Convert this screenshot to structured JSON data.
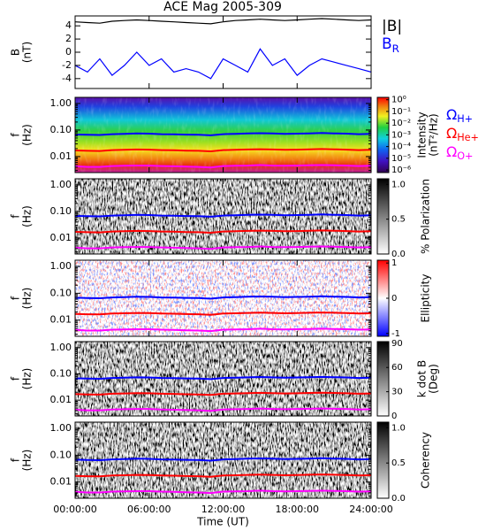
{
  "title": "ACE Mag 2005-309",
  "chart_data": [
    {
      "type": "line",
      "ylabel": [
        "B",
        "(nT)"
      ],
      "x": [
        0,
        1,
        2,
        3,
        4,
        5,
        6,
        7,
        8,
        9,
        10,
        11,
        12,
        13,
        14,
        15,
        16,
        17,
        18,
        19,
        20,
        21,
        22,
        23,
        24
      ],
      "xlim": [
        0,
        24
      ],
      "xticks": [
        0,
        6,
        12,
        18,
        24
      ],
      "ylim": [
        -5.5,
        5.5
      ],
      "yticks": [
        -4,
        -2,
        0,
        2,
        4
      ],
      "series": [
        {
          "name": "|B|",
          "color": "#000000",
          "values": [
            4.6,
            4.5,
            4.4,
            4.7,
            4.8,
            4.9,
            4.8,
            4.7,
            4.6,
            4.5,
            4.4,
            4.3,
            4.6,
            4.8,
            4.9,
            5.0,
            4.9,
            4.8,
            4.9,
            5.0,
            5.1,
            5.0,
            4.9,
            4.8,
            4.9
          ]
        },
        {
          "name": "B",
          "name_sub": "R",
          "color": "#0000ff",
          "values": [
            -2,
            -3,
            -1,
            -3.5,
            -2,
            0,
            -2,
            -1,
            -3,
            -2.5,
            -3,
            -4,
            -1,
            -2,
            -3,
            0.5,
            -2,
            -1,
            -3.5,
            -2,
            -1,
            -1.5,
            -2,
            -2.5,
            -3
          ]
        }
      ]
    },
    {
      "type": "spectrogram",
      "colormap": "rainbow",
      "ylabel": [
        "f",
        "(Hz)"
      ],
      "x": [
        0,
        1,
        2,
        3,
        4,
        5,
        6,
        7,
        8,
        9,
        10,
        11,
        12,
        13,
        14,
        15,
        16,
        17,
        18,
        19,
        20,
        21,
        22,
        23,
        24
      ],
      "xlim": [
        0,
        24
      ],
      "xticks": [
        0,
        6,
        12,
        18,
        24
      ],
      "log_y": true,
      "ylim": [
        0.0025,
        1.7
      ],
      "yticks": [
        {
          "value": 1,
          "label": "1.00"
        },
        {
          "value": 0.1,
          "label": "0.10"
        },
        {
          "value": 0.01,
          "label": "0.01"
        }
      ],
      "colorbar": {
        "label": [
          "Intensity",
          "(nT²/Hz)"
        ],
        "log": true,
        "lim": [
          6e-07,
          1.6
        ],
        "ticks": [
          {
            "value": 1,
            "label": "10⁰"
          },
          {
            "value": 0.1,
            "label": "10⁻¹"
          },
          {
            "value": 0.01,
            "label": "10⁻²"
          },
          {
            "value": 0.001,
            "label": "10⁻³"
          },
          {
            "value": 0.0001,
            "label": "10⁻⁴"
          },
          {
            "value": 1e-05,
            "label": "10⁻⁵"
          },
          {
            "value": 1e-06,
            "label": "10⁻⁶"
          }
        ]
      },
      "series": [
        {
          "name": "Ω",
          "name_sub": "H+",
          "color": "#0000ff",
          "values": [
            0.068,
            0.066,
            0.065,
            0.07,
            0.072,
            0.074,
            0.073,
            0.07,
            0.069,
            0.067,
            0.066,
            0.063,
            0.07,
            0.072,
            0.074,
            0.076,
            0.074,
            0.072,
            0.073,
            0.075,
            0.077,
            0.075,
            0.073,
            0.07,
            0.072
          ]
        },
        {
          "name": "Ω",
          "name_sub": "He+",
          "color": "#ff0000",
          "values": [
            0.017,
            0.0165,
            0.0163,
            0.0175,
            0.018,
            0.0185,
            0.0183,
            0.0175,
            0.0173,
            0.0168,
            0.0165,
            0.0158,
            0.0175,
            0.018,
            0.0185,
            0.019,
            0.0185,
            0.018,
            0.0183,
            0.0188,
            0.0193,
            0.0188,
            0.0183,
            0.0175,
            0.018
          ]
        },
        {
          "name": "Ω",
          "name_sub": "O+",
          "color": "#ff00ff",
          "values": [
            0.0043,
            0.0041,
            0.0041,
            0.0044,
            0.0045,
            0.0046,
            0.0046,
            0.0044,
            0.0043,
            0.0042,
            0.0041,
            0.0039,
            0.0044,
            0.0045,
            0.0046,
            0.0048,
            0.0046,
            0.0045,
            0.0046,
            0.0047,
            0.0048,
            0.0047,
            0.0046,
            0.0044,
            0.0045
          ]
        }
      ]
    },
    {
      "type": "spectrogram",
      "colormap": "gray",
      "ylabel": [
        "f",
        "(Hz)"
      ],
      "x": [
        0,
        1,
        2,
        3,
        4,
        5,
        6,
        7,
        8,
        9,
        10,
        11,
        12,
        13,
        14,
        15,
        16,
        17,
        18,
        19,
        20,
        21,
        22,
        23,
        24
      ],
      "xlim": [
        0,
        24
      ],
      "xticks": [
        0,
        6,
        12,
        18,
        24
      ],
      "log_y": true,
      "ylim": [
        0.0025,
        1.7
      ],
      "yticks": [
        {
          "value": 1,
          "label": "1.00"
        },
        {
          "value": 0.1,
          "label": "0.10"
        },
        {
          "value": 0.01,
          "label": "0.01"
        }
      ],
      "colorbar": {
        "label": [
          "% Polarization"
        ],
        "log": false,
        "lim": [
          0,
          1.08
        ],
        "gradient": "gray",
        "ticks": [
          {
            "value": 0,
            "label": "0.0"
          },
          {
            "value": 0.5,
            "label": "0.5"
          },
          {
            "value": 1,
            "label": "1.0"
          }
        ]
      },
      "series": [
        {
          "color": "#0000ff",
          "values": [
            0.068,
            0.066,
            0.065,
            0.07,
            0.072,
            0.074,
            0.073,
            0.07,
            0.069,
            0.067,
            0.066,
            0.063,
            0.07,
            0.072,
            0.074,
            0.076,
            0.074,
            0.072,
            0.073,
            0.075,
            0.077,
            0.075,
            0.073,
            0.07,
            0.072
          ]
        },
        {
          "color": "#ff0000",
          "values": [
            0.017,
            0.0165,
            0.0163,
            0.0175,
            0.018,
            0.0185,
            0.0183,
            0.0175,
            0.0173,
            0.0168,
            0.0165,
            0.0158,
            0.0175,
            0.018,
            0.0185,
            0.019,
            0.0185,
            0.018,
            0.0183,
            0.0188,
            0.0193,
            0.0188,
            0.0183,
            0.0175,
            0.018
          ]
        },
        {
          "color": "#ff00ff",
          "values": [
            0.0043,
            0.0041,
            0.0041,
            0.0044,
            0.0045,
            0.0046,
            0.0046,
            0.0044,
            0.0043,
            0.0042,
            0.0041,
            0.0039,
            0.0044,
            0.0045,
            0.0046,
            0.0048,
            0.0046,
            0.0045,
            0.0046,
            0.0047,
            0.0048,
            0.0047,
            0.0046,
            0.0044,
            0.0045
          ]
        }
      ]
    },
    {
      "type": "spectrogram",
      "colormap": "bwr",
      "ylabel": [
        "f",
        "(Hz)"
      ],
      "x": [
        0,
        1,
        2,
        3,
        4,
        5,
        6,
        7,
        8,
        9,
        10,
        11,
        12,
        13,
        14,
        15,
        16,
        17,
        18,
        19,
        20,
        21,
        22,
        23,
        24
      ],
      "xlim": [
        0,
        24
      ],
      "xticks": [
        0,
        6,
        12,
        18,
        24
      ],
      "log_y": true,
      "ylim": [
        0.0025,
        1.7
      ],
      "yticks": [
        {
          "value": 1,
          "label": "1.00"
        },
        {
          "value": 0.1,
          "label": "0.10"
        },
        {
          "value": 0.01,
          "label": "0.01"
        }
      ],
      "colorbar": {
        "label": [
          "Ellipticity"
        ],
        "log": false,
        "lim": [
          -1.08,
          1.08
        ],
        "gradient": "bwr",
        "ticks": [
          -1,
          0,
          1
        ]
      },
      "series": [
        {
          "color": "#0000ff",
          "values": [
            0.068,
            0.066,
            0.065,
            0.07,
            0.072,
            0.074,
            0.073,
            0.07,
            0.069,
            0.067,
            0.066,
            0.063,
            0.07,
            0.072,
            0.074,
            0.076,
            0.074,
            0.072,
            0.073,
            0.075,
            0.077,
            0.075,
            0.073,
            0.07,
            0.072
          ]
        },
        {
          "color": "#ff0000",
          "values": [
            0.017,
            0.0165,
            0.0163,
            0.0175,
            0.018,
            0.0185,
            0.0183,
            0.0175,
            0.0173,
            0.0168,
            0.0165,
            0.0158,
            0.0175,
            0.018,
            0.0185,
            0.019,
            0.0185,
            0.018,
            0.0183,
            0.0188,
            0.0193,
            0.0188,
            0.0183,
            0.0175,
            0.018
          ]
        },
        {
          "color": "#ff00ff",
          "values": [
            0.0043,
            0.0041,
            0.0041,
            0.0044,
            0.0045,
            0.0046,
            0.0046,
            0.0044,
            0.0043,
            0.0042,
            0.0041,
            0.0039,
            0.0044,
            0.0045,
            0.0046,
            0.0048,
            0.0046,
            0.0045,
            0.0046,
            0.0047,
            0.0048,
            0.0047,
            0.0046,
            0.0044,
            0.0045
          ]
        }
      ]
    },
    {
      "type": "spectrogram",
      "colormap": "gray",
      "ylabel": [
        "f",
        "(Hz)"
      ],
      "x": [
        0,
        1,
        2,
        3,
        4,
        5,
        6,
        7,
        8,
        9,
        10,
        11,
        12,
        13,
        14,
        15,
        16,
        17,
        18,
        19,
        20,
        21,
        22,
        23,
        24
      ],
      "xlim": [
        0,
        24
      ],
      "xticks": [
        0,
        6,
        12,
        18,
        24
      ],
      "log_y": true,
      "ylim": [
        0.0025,
        1.7
      ],
      "yticks": [
        {
          "value": 1,
          "label": "1.00"
        },
        {
          "value": 0.1,
          "label": "0.10"
        },
        {
          "value": 0.01,
          "label": "0.01"
        }
      ],
      "colorbar": {
        "label": [
          "k dot B",
          "(Deg)"
        ],
        "log": false,
        "lim": [
          0,
          92
        ],
        "gradient": "gray",
        "ticks": [
          0,
          30,
          60,
          90
        ]
      },
      "series": [
        {
          "color": "#0000ff",
          "values": [
            0.068,
            0.066,
            0.065,
            0.07,
            0.072,
            0.074,
            0.073,
            0.07,
            0.069,
            0.067,
            0.066,
            0.063,
            0.07,
            0.072,
            0.074,
            0.076,
            0.074,
            0.072,
            0.073,
            0.075,
            0.077,
            0.075,
            0.073,
            0.07,
            0.072
          ]
        },
        {
          "color": "#ff0000",
          "values": [
            0.017,
            0.0165,
            0.0163,
            0.0175,
            0.018,
            0.0185,
            0.0183,
            0.0175,
            0.0173,
            0.0168,
            0.0165,
            0.0158,
            0.0175,
            0.018,
            0.0185,
            0.019,
            0.0185,
            0.018,
            0.0183,
            0.0188,
            0.0193,
            0.0188,
            0.0183,
            0.0175,
            0.018
          ]
        },
        {
          "color": "#ff00ff",
          "values": [
            0.0043,
            0.0041,
            0.0041,
            0.0044,
            0.0045,
            0.0046,
            0.0046,
            0.0044,
            0.0043,
            0.0042,
            0.0041,
            0.0039,
            0.0044,
            0.0045,
            0.0046,
            0.0048,
            0.0046,
            0.0045,
            0.0046,
            0.0047,
            0.0048,
            0.0047,
            0.0046,
            0.0044,
            0.0045
          ]
        }
      ]
    },
    {
      "type": "spectrogram",
      "colormap": "gray",
      "ylabel": [
        "f",
        "(Hz)"
      ],
      "x": [
        0,
        1,
        2,
        3,
        4,
        5,
        6,
        7,
        8,
        9,
        10,
        11,
        12,
        13,
        14,
        15,
        16,
        17,
        18,
        19,
        20,
        21,
        22,
        23,
        24
      ],
      "xlim": [
        0,
        24
      ],
      "xticks": [
        {
          "value": 0,
          "label": "00:00:00"
        },
        {
          "value": 6,
          "label": "06:00:00"
        },
        {
          "value": 12,
          "label": "12:00:00"
        },
        {
          "value": 18,
          "label": "18:00:00"
        },
        {
          "value": 24,
          "label": "24:00:00"
        }
      ],
      "xlabel": "Time (UT)",
      "log_y": true,
      "ylim": [
        0.0025,
        1.7
      ],
      "yticks": [
        {
          "value": 1,
          "label": "1.00"
        },
        {
          "value": 0.1,
          "label": "0.10"
        },
        {
          "value": 0.01,
          "label": "0.01"
        }
      ],
      "colorbar": {
        "label": [
          "Coherency"
        ],
        "log": false,
        "lim": [
          0,
          1.08
        ],
        "gradient": "gray",
        "ticks": [
          {
            "value": 0,
            "label": "0.0"
          },
          {
            "value": 0.5,
            "label": "0.5"
          },
          {
            "value": 1,
            "label": "1.0"
          }
        ]
      },
      "series": [
        {
          "color": "#0000ff",
          "values": [
            0.068,
            0.066,
            0.065,
            0.07,
            0.072,
            0.074,
            0.073,
            0.07,
            0.069,
            0.067,
            0.066,
            0.063,
            0.07,
            0.072,
            0.074,
            0.076,
            0.074,
            0.072,
            0.073,
            0.075,
            0.077,
            0.075,
            0.073,
            0.07,
            0.072
          ]
        },
        {
          "color": "#ff0000",
          "values": [
            0.017,
            0.0165,
            0.0163,
            0.0175,
            0.018,
            0.0185,
            0.0183,
            0.0175,
            0.0173,
            0.0168,
            0.0165,
            0.0158,
            0.0175,
            0.018,
            0.0185,
            0.019,
            0.0185,
            0.018,
            0.0183,
            0.0188,
            0.0193,
            0.0188,
            0.0183,
            0.0175,
            0.018
          ]
        },
        {
          "color": "#ff00ff",
          "values": [
            0.0043,
            0.0041,
            0.0041,
            0.0044,
            0.0045,
            0.0046,
            0.0046,
            0.0044,
            0.0043,
            0.0042,
            0.0041,
            0.0039,
            0.0044,
            0.0045,
            0.0046,
            0.0048,
            0.0046,
            0.0045,
            0.0046,
            0.0047,
            0.0048,
            0.0047,
            0.0046,
            0.0044,
            0.0045
          ]
        }
      ]
    }
  ]
}
